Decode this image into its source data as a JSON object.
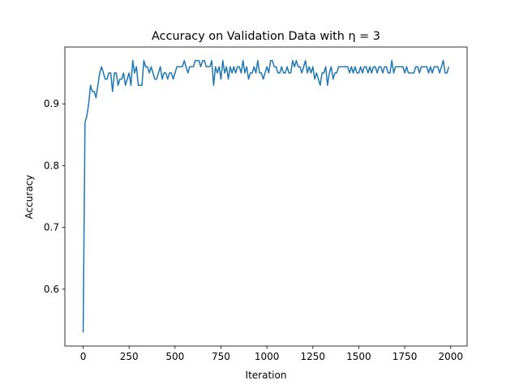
{
  "chart_data": {
    "type": "line",
    "title": "Accuracy on Validation Data with η = 3",
    "xlabel": "Iteration",
    "ylabel": "Accuracy",
    "x": [
      0,
      10,
      20,
      30,
      40,
      50,
      60,
      70,
      80,
      90,
      100,
      110,
      120,
      130,
      140,
      150,
      160,
      170,
      180,
      190,
      200,
      210,
      220,
      230,
      240,
      250,
      260,
      270,
      280,
      290,
      300,
      310,
      320,
      330,
      340,
      350,
      360,
      370,
      380,
      390,
      400,
      410,
      420,
      430,
      440,
      450,
      460,
      470,
      480,
      490,
      500,
      510,
      520,
      530,
      540,
      550,
      560,
      570,
      580,
      590,
      600,
      610,
      620,
      630,
      640,
      650,
      660,
      670,
      680,
      690,
      700,
      710,
      720,
      730,
      740,
      750,
      760,
      770,
      780,
      790,
      800,
      810,
      820,
      830,
      840,
      850,
      860,
      870,
      880,
      890,
      900,
      910,
      920,
      930,
      940,
      950,
      960,
      970,
      980,
      990,
      1000,
      1010,
      1020,
      1030,
      1040,
      1050,
      1060,
      1070,
      1080,
      1090,
      1100,
      1110,
      1120,
      1130,
      1140,
      1150,
      1160,
      1170,
      1180,
      1190,
      1200,
      1210,
      1220,
      1230,
      1240,
      1250,
      1260,
      1270,
      1280,
      1290,
      1300,
      1310,
      1320,
      1330,
      1340,
      1350,
      1360,
      1370,
      1380,
      1390,
      1400,
      1410,
      1420,
      1430,
      1440,
      1450,
      1460,
      1470,
      1480,
      1490,
      1500,
      1510,
      1520,
      1530,
      1540,
      1550,
      1560,
      1570,
      1580,
      1590,
      1600,
      1610,
      1620,
      1630,
      1640,
      1650,
      1660,
      1670,
      1680,
      1690,
      1700,
      1710,
      1720,
      1730,
      1740,
      1750,
      1760,
      1770,
      1780,
      1790,
      1800,
      1810,
      1820,
      1830,
      1840,
      1850,
      1860,
      1870,
      1880,
      1890,
      1900,
      1910,
      1920,
      1930,
      1940,
      1950,
      1960,
      1970,
      1980,
      1990
    ],
    "series": [
      {
        "color": "#1f77b4",
        "values": [
          0.53,
          0.87,
          0.88,
          0.9,
          0.93,
          0.92,
          0.92,
          0.91,
          0.93,
          0.95,
          0.96,
          0.95,
          0.94,
          0.94,
          0.95,
          0.95,
          0.92,
          0.95,
          0.95,
          0.93,
          0.94,
          0.94,
          0.95,
          0.93,
          0.94,
          0.95,
          0.93,
          0.97,
          0.95,
          0.96,
          0.93,
          0.93,
          0.93,
          0.97,
          0.96,
          0.96,
          0.95,
          0.96,
          0.95,
          0.94,
          0.94,
          0.95,
          0.96,
          0.94,
          0.95,
          0.95,
          0.94,
          0.95,
          0.95,
          0.94,
          0.95,
          0.96,
          0.96,
          0.96,
          0.96,
          0.97,
          0.96,
          0.95,
          0.96,
          0.96,
          0.96,
          0.97,
          0.97,
          0.97,
          0.96,
          0.97,
          0.97,
          0.96,
          0.96,
          0.96,
          0.97,
          0.93,
          0.96,
          0.95,
          0.96,
          0.94,
          0.97,
          0.95,
          0.96,
          0.94,
          0.96,
          0.95,
          0.96,
          0.95,
          0.96,
          0.96,
          0.95,
          0.97,
          0.95,
          0.96,
          0.94,
          0.95,
          0.95,
          0.96,
          0.95,
          0.97,
          0.95,
          0.95,
          0.94,
          0.95,
          0.96,
          0.95,
          0.97,
          0.97,
          0.96,
          0.96,
          0.95,
          0.95,
          0.96,
          0.95,
          0.95,
          0.96,
          0.95,
          0.95,
          0.97,
          0.96,
          0.97,
          0.96,
          0.96,
          0.95,
          0.96,
          0.97,
          0.95,
          0.96,
          0.95,
          0.96,
          0.94,
          0.95,
          0.94,
          0.93,
          0.95,
          0.95,
          0.96,
          0.93,
          0.95,
          0.96,
          0.94,
          0.95,
          0.95,
          0.96,
          0.96,
          0.96,
          0.96,
          0.96,
          0.96,
          0.95,
          0.96,
          0.95,
          0.96,
          0.95,
          0.95,
          0.96,
          0.95,
          0.96,
          0.96,
          0.95,
          0.96,
          0.95,
          0.96,
          0.96,
          0.95,
          0.96,
          0.96,
          0.95,
          0.96,
          0.96,
          0.95,
          0.95,
          0.97,
          0.95,
          0.96,
          0.96,
          0.96,
          0.96,
          0.96,
          0.95,
          0.96,
          0.95,
          0.95,
          0.95,
          0.95,
          0.96,
          0.96,
          0.95,
          0.96,
          0.96,
          0.96,
          0.96,
          0.95,
          0.96,
          0.95,
          0.96,
          0.96,
          0.96,
          0.95,
          0.96,
          0.97,
          0.95,
          0.95,
          0.96
        ]
      }
    ],
    "xlim": [
      -99.5,
      2089.5
    ],
    "xticks": [
      0,
      250,
      500,
      750,
      1000,
      1250,
      1500,
      1750,
      2000
    ],
    "ylim": [
      0.508,
      0.992
    ],
    "yticks": [
      0.6,
      0.7,
      0.8,
      0.9
    ]
  }
}
